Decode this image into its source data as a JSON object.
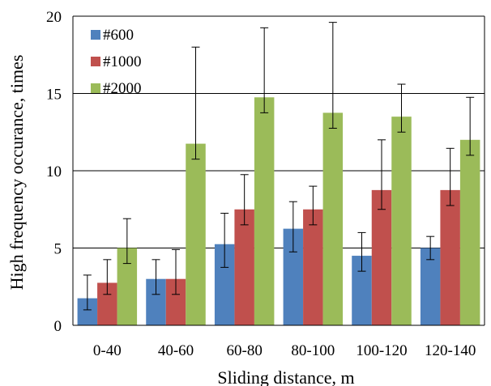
{
  "chart_data": {
    "type": "bar",
    "title": "",
    "xlabel": "Sliding distance, m",
    "ylabel": "High frequency occurance, times",
    "ylim": [
      0,
      20
    ],
    "yticks": [
      0,
      5,
      10,
      15,
      20
    ],
    "grid": "horizontal",
    "legend": "top-left",
    "categories": [
      "0-40",
      "40-60",
      "60-80",
      "80-100",
      "100-120",
      "120-140"
    ],
    "series": [
      {
        "name": "#600",
        "color": "#4F81BD",
        "values": [
          1.75,
          3.0,
          5.25,
          6.25,
          4.5,
          5.0
        ],
        "err_low": [
          0.75,
          1.0,
          1.5,
          1.5,
          1.0,
          0.75
        ],
        "err_high": [
          1.5,
          1.25,
          2.0,
          1.75,
          1.5,
          0.75
        ]
      },
      {
        "name": "#1000",
        "color": "#C0504D",
        "values": [
          2.75,
          3.0,
          7.5,
          7.5,
          8.75,
          8.75
        ],
        "err_low": [
          0.75,
          1.0,
          1.0,
          1.0,
          1.25,
          1.0
        ],
        "err_high": [
          1.5,
          1.9,
          2.25,
          1.5,
          3.25,
          2.7
        ]
      },
      {
        "name": "#2000",
        "color": "#9BBB59",
        "values": [
          5.0,
          11.75,
          14.75,
          13.75,
          13.5,
          12.0
        ],
        "err_low": [
          1.0,
          1.0,
          1.0,
          1.0,
          1.0,
          1.0
        ],
        "err_high": [
          1.9,
          6.25,
          4.5,
          5.85,
          2.1,
          2.75
        ]
      }
    ]
  }
}
